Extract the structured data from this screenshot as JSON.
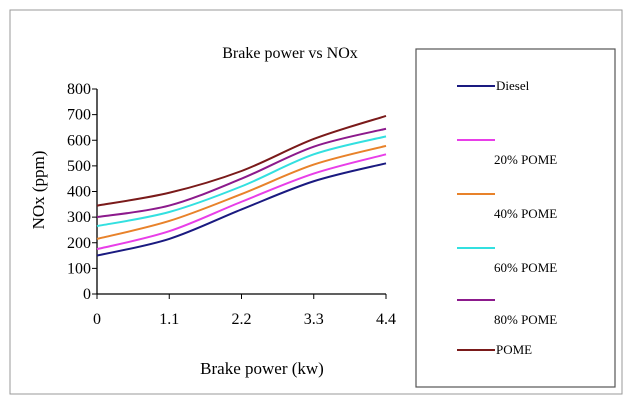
{
  "chart_data": {
    "type": "line",
    "title": "Brake power vs NOx",
    "xlabel": "Brake power (kw)",
    "ylabel": "NOx (ppm)",
    "categories": [
      "0",
      "1.1",
      "2.2",
      "3.3",
      "4.4"
    ],
    "x": [
      0,
      1.1,
      2.2,
      3.3,
      4.4
    ],
    "ylim": [
      0,
      800
    ],
    "yticks": [
      "0",
      "100",
      "200",
      "300",
      "400",
      "500",
      "600",
      "700",
      "800"
    ],
    "grid": false,
    "legend_position": "right",
    "series": [
      {
        "name": "Diesel",
        "color": "#1a1a80",
        "values": [
          150,
          215,
          330,
          440,
          510
        ]
      },
      {
        "name": "20% POME",
        "color": "#e83ee8",
        "values": [
          175,
          245,
          360,
          470,
          545
        ]
      },
      {
        "name": "40% POME",
        "color": "#e8822a",
        "values": [
          215,
          285,
          390,
          505,
          578
        ]
      },
      {
        "name": "60% POME",
        "color": "#33e0e0",
        "values": [
          265,
          320,
          420,
          545,
          615
        ]
      },
      {
        "name": "80% POME",
        "color": "#8c1a8c",
        "values": [
          300,
          345,
          450,
          575,
          645
        ]
      },
      {
        "name": "POME",
        "color": "#7a1a1a",
        "values": [
          345,
          395,
          480,
          605,
          695
        ]
      }
    ]
  }
}
